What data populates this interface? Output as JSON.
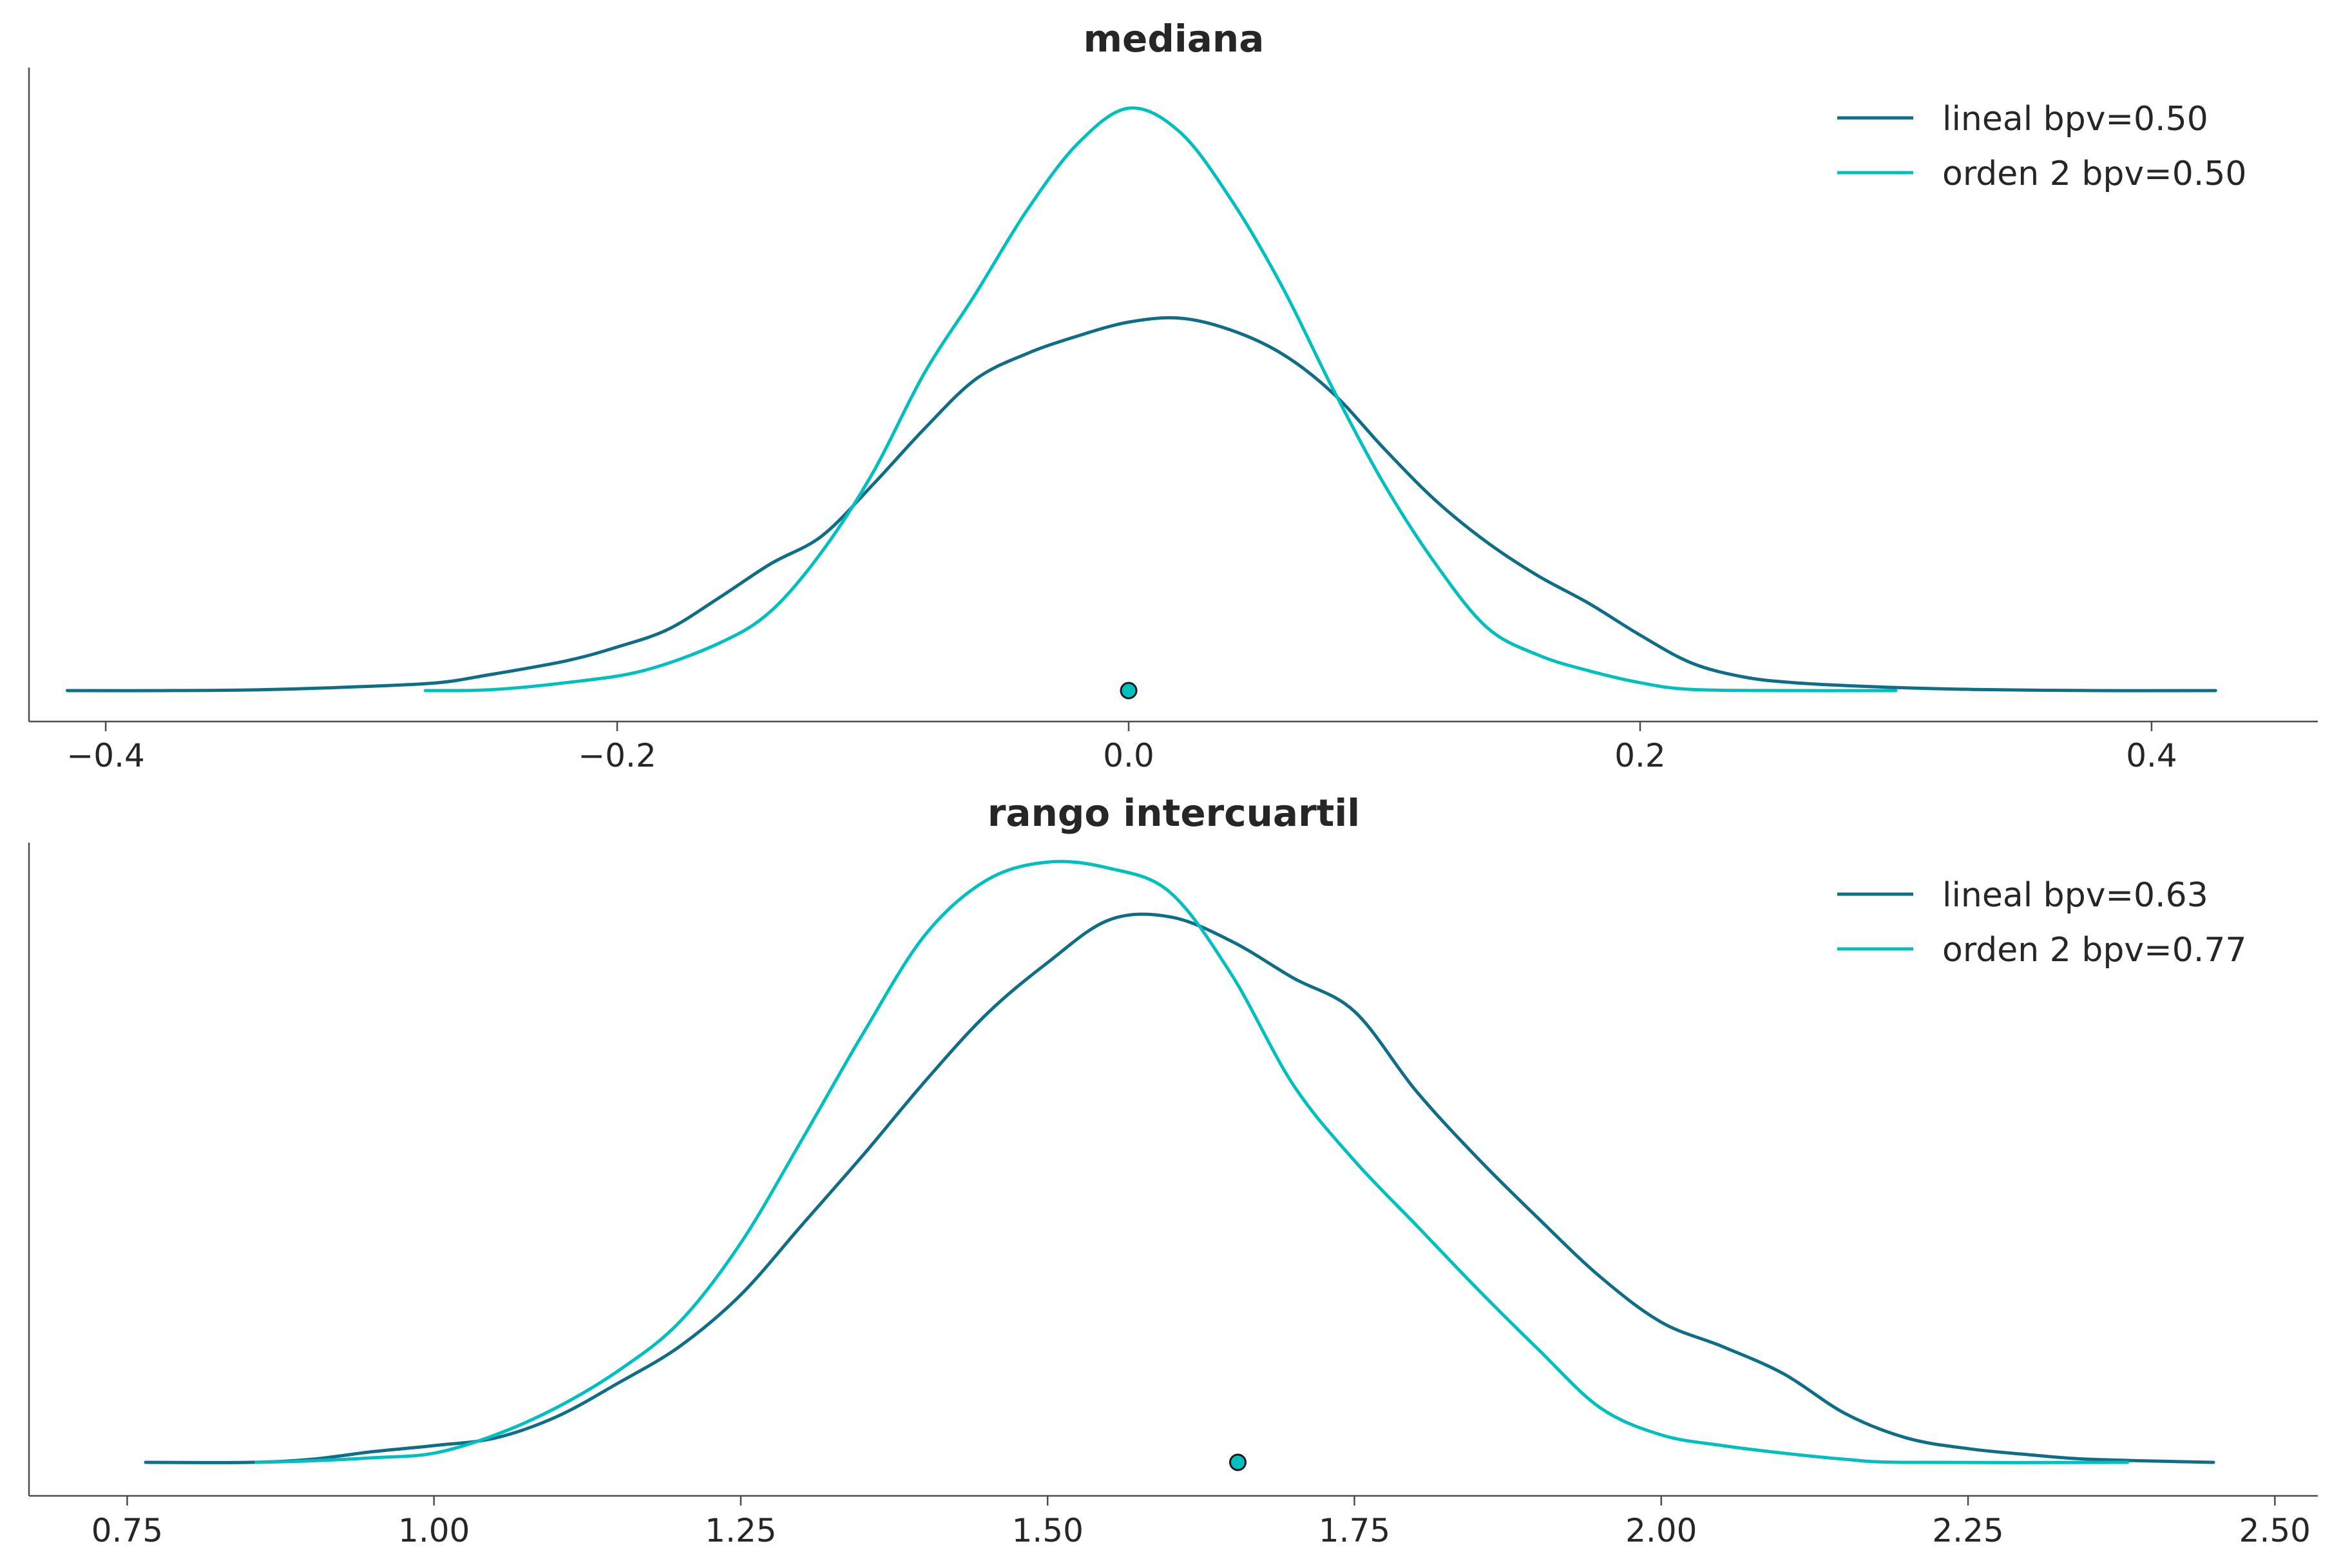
{
  "colors": {
    "lineal": "#0f6e87",
    "orden2": "#00bfbf",
    "marker_edge": "#1a1a1a",
    "axis": "#4d4d4d"
  },
  "chart_data": [
    {
      "type": "line",
      "title": "mediana",
      "xlabel": "",
      "ylabel": "",
      "xlim": [
        -0.43,
        0.465
      ],
      "ticks": [
        -0.4,
        -0.2,
        0.0,
        0.2,
        0.4
      ],
      "tick_labels": [
        "−0.4",
        "−0.2",
        "0.0",
        "0.2",
        "0.4"
      ],
      "legend_position": "upper-right",
      "y_ticks_shown": false,
      "series": [
        {
          "name": "lineal bpv=0.50",
          "color_key": "lineal",
          "points": [
            [
              -0.415,
              0.0
            ],
            [
              -0.38,
              0.0
            ],
            [
              -0.34,
              0.002
            ],
            [
              -0.3,
              0.01
            ],
            [
              -0.27,
              0.02
            ],
            [
              -0.25,
              0.04
            ],
            [
              -0.22,
              0.075
            ],
            [
              -0.2,
              0.11
            ],
            [
              -0.18,
              0.155
            ],
            [
              -0.16,
              0.235
            ],
            [
              -0.14,
              0.32
            ],
            [
              -0.12,
              0.39
            ],
            [
              -0.1,
              0.52
            ],
            [
              -0.08,
              0.66
            ],
            [
              -0.06,
              0.785
            ],
            [
              -0.04,
              0.85
            ],
            [
              -0.02,
              0.895
            ],
            [
              0.0,
              0.93
            ],
            [
              0.02,
              0.94
            ],
            [
              0.04,
              0.91
            ],
            [
              0.06,
              0.85
            ],
            [
              0.08,
              0.75
            ],
            [
              0.1,
              0.61
            ],
            [
              0.12,
              0.48
            ],
            [
              0.14,
              0.375
            ],
            [
              0.16,
              0.29
            ],
            [
              0.18,
              0.22
            ],
            [
              0.2,
              0.14
            ],
            [
              0.22,
              0.07
            ],
            [
              0.24,
              0.035
            ],
            [
              0.26,
              0.02
            ],
            [
              0.29,
              0.01
            ],
            [
              0.33,
              0.003
            ],
            [
              0.38,
              0.0
            ],
            [
              0.425,
              0.0
            ]
          ]
        },
        {
          "name": "orden 2 bpv=0.50",
          "color_key": "orden2",
          "points": [
            [
              -0.275,
              0.0
            ],
            [
              -0.25,
              0.002
            ],
            [
              -0.22,
              0.02
            ],
            [
              -0.19,
              0.05
            ],
            [
              -0.16,
              0.12
            ],
            [
              -0.14,
              0.2
            ],
            [
              -0.12,
              0.35
            ],
            [
              -0.1,
              0.55
            ],
            [
              -0.08,
              0.8
            ],
            [
              -0.06,
              1.0
            ],
            [
              -0.04,
              1.21
            ],
            [
              -0.02,
              1.38
            ],
            [
              0.0,
              1.47
            ],
            [
              0.02,
              1.41
            ],
            [
              0.04,
              1.24
            ],
            [
              0.06,
              1.02
            ],
            [
              0.08,
              0.76
            ],
            [
              0.1,
              0.52
            ],
            [
              0.12,
              0.32
            ],
            [
              0.14,
              0.16
            ],
            [
              0.16,
              0.09
            ],
            [
              0.18,
              0.05
            ],
            [
              0.2,
              0.02
            ],
            [
              0.22,
              0.003
            ],
            [
              0.26,
              0.0
            ],
            [
              0.3,
              0.0
            ]
          ]
        }
      ],
      "marker": {
        "x": 0.0,
        "y": 0.0,
        "color_key": "orden2"
      }
    },
    {
      "type": "line",
      "title": "rango intercuartil",
      "xlabel": "",
      "ylabel": "",
      "xlim": [
        0.67,
        2.535
      ],
      "ticks": [
        0.75,
        1.0,
        1.25,
        1.5,
        1.75,
        2.0,
        2.25,
        2.5
      ],
      "tick_labels": [
        "0.75",
        "1.00",
        "1.25",
        "1.50",
        "1.75",
        "2.00",
        "2.25",
        "2.50"
      ],
      "legend_position": "upper-right",
      "y_ticks_shown": false,
      "series": [
        {
          "name": "lineal bpv=0.63",
          "color_key": "lineal",
          "points": [
            [
              0.765,
              0.0
            ],
            [
              0.85,
              0.0
            ],
            [
              0.9,
              0.01
            ],
            [
              0.95,
              0.035
            ],
            [
              1.0,
              0.055
            ],
            [
              1.05,
              0.08
            ],
            [
              1.1,
              0.15
            ],
            [
              1.15,
              0.26
            ],
            [
              1.2,
              0.38
            ],
            [
              1.25,
              0.55
            ],
            [
              1.3,
              0.78
            ],
            [
              1.35,
              1.01
            ],
            [
              1.4,
              1.25
            ],
            [
              1.45,
              1.47
            ],
            [
              1.5,
              1.64
            ],
            [
              1.55,
              1.78
            ],
            [
              1.6,
              1.79
            ],
            [
              1.65,
              1.71
            ],
            [
              1.7,
              1.59
            ],
            [
              1.75,
              1.48
            ],
            [
              1.8,
              1.22
            ],
            [
              1.85,
              1.0
            ],
            [
              1.9,
              0.8
            ],
            [
              1.95,
              0.61
            ],
            [
              2.0,
              0.46
            ],
            [
              2.05,
              0.38
            ],
            [
              2.1,
              0.29
            ],
            [
              2.15,
              0.16
            ],
            [
              2.2,
              0.08
            ],
            [
              2.25,
              0.045
            ],
            [
              2.3,
              0.025
            ],
            [
              2.35,
              0.01
            ],
            [
              2.45,
              0.0
            ]
          ]
        },
        {
          "name": "orden 2 bpv=0.77",
          "color_key": "orden2",
          "points": [
            [
              0.855,
              0.0
            ],
            [
              0.9,
              0.005
            ],
            [
              0.95,
              0.015
            ],
            [
              1.0,
              0.03
            ],
            [
              1.05,
              0.09
            ],
            [
              1.1,
              0.18
            ],
            [
              1.15,
              0.3
            ],
            [
              1.2,
              0.46
            ],
            [
              1.25,
              0.72
            ],
            [
              1.3,
              1.06
            ],
            [
              1.35,
              1.41
            ],
            [
              1.4,
              1.73
            ],
            [
              1.45,
              1.91
            ],
            [
              1.5,
              1.97
            ],
            [
              1.55,
              1.95
            ],
            [
              1.6,
              1.87
            ],
            [
              1.65,
              1.6
            ],
            [
              1.7,
              1.24
            ],
            [
              1.75,
              0.99
            ],
            [
              1.8,
              0.78
            ],
            [
              1.85,
              0.57
            ],
            [
              1.9,
              0.37
            ],
            [
              1.95,
              0.18
            ],
            [
              2.0,
              0.09
            ],
            [
              2.05,
              0.055
            ],
            [
              2.1,
              0.03
            ],
            [
              2.15,
              0.01
            ],
            [
              2.2,
              0.0
            ],
            [
              2.38,
              0.0
            ]
          ]
        }
      ],
      "marker": {
        "x": 1.655,
        "y": 0.0,
        "color_key": "orden2"
      }
    }
  ]
}
